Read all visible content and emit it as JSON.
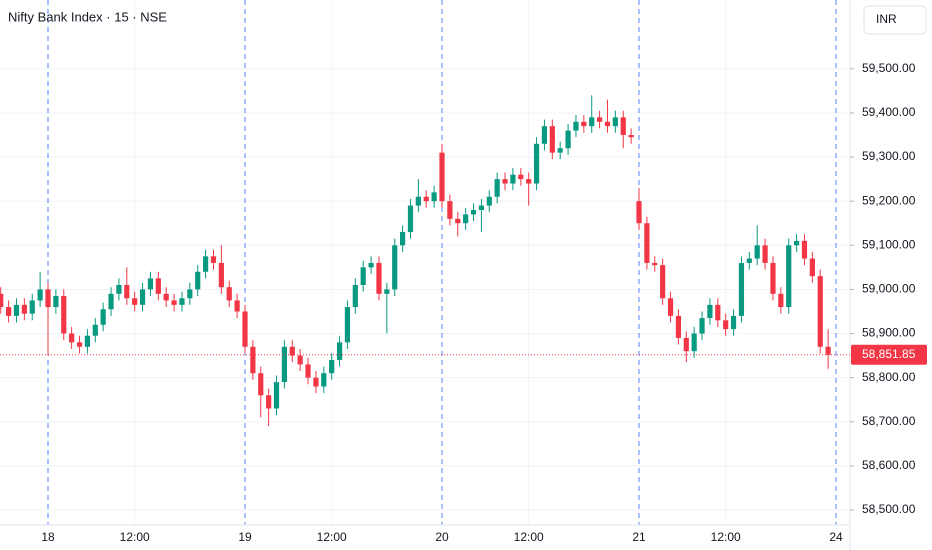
{
  "chart_data": {
    "type": "candlestick",
    "title": "Nifty Bank Index · 15 · NSE",
    "currency": "INR",
    "up_color": "#089981",
    "down_color": "#f23645",
    "categories": [
      null,
      null,
      null,
      null,
      null,
      null,
      "18",
      null,
      null,
      null,
      null,
      null,
      null,
      null,
      null,
      null,
      null,
      "12:00",
      null,
      null,
      null,
      null,
      null,
      null,
      null,
      null,
      null,
      null,
      null,
      null,
      null,
      "19",
      null,
      null,
      null,
      null,
      null,
      null,
      null,
      null,
      null,
      null,
      "12:00",
      null,
      null,
      null,
      null,
      null,
      null,
      null,
      null,
      null,
      null,
      null,
      null,
      null,
      "20",
      null,
      null,
      null,
      null,
      null,
      null,
      null,
      null,
      null,
      null,
      "12:00",
      null,
      null,
      null,
      null,
      null,
      null,
      null,
      null,
      null,
      null,
      null,
      null,
      null,
      "21",
      null,
      null,
      null,
      null,
      null,
      null,
      null,
      null,
      null,
      null,
      "12:00",
      null,
      null,
      null,
      null,
      null,
      null,
      null,
      null,
      null,
      null,
      null,
      null,
      null,
      "24"
    ],
    "open": [
      58990,
      58960,
      58940,
      58965,
      58945,
      58975,
      59000,
      58960,
      58985,
      58900,
      58880,
      58870,
      58895,
      58920,
      58955,
      58990,
      59010,
      58980,
      58965,
      59000,
      59025,
      58990,
      58975,
      58965,
      58980,
      59000,
      59040,
      59075,
      59060,
      59005,
      58975,
      58950,
      58870,
      58810,
      58760,
      58730,
      58790,
      58870,
      58850,
      58830,
      58800,
      58780,
      58810,
      58840,
      58880,
      58960,
      59010,
      59050,
      59060,
      58990,
      59000,
      59100,
      59130,
      59190,
      59210,
      59200,
      59310,
      59200,
      59160,
      59150,
      59170,
      59180,
      59190,
      59210,
      59250,
      59240,
      59260,
      59250,
      59240,
      59330,
      59370,
      59310,
      59320,
      59360,
      59380,
      59370,
      59390,
      59380,
      59370,
      59390,
      59350,
      59200,
      59150,
      59060,
      59055,
      58980,
      58940,
      58890,
      58860,
      58900,
      58935,
      58965,
      58930,
      58910,
      58940,
      59060,
      59070,
      59100,
      59060,
      58990,
      58960,
      59100,
      59110,
      59070,
      59030,
      58870,
      null
    ],
    "high": [
      59005,
      58975,
      58980,
      58980,
      58990,
      59040,
      59015,
      59000,
      59000,
      58915,
      58895,
      58910,
      58935,
      58970,
      59005,
      59025,
      59050,
      58995,
      59015,
      59040,
      59040,
      59005,
      58990,
      58995,
      59015,
      59055,
      59090,
      59090,
      59100,
      59020,
      58990,
      58965,
      58885,
      58825,
      58775,
      58805,
      58885,
      58885,
      58865,
      58845,
      58815,
      58825,
      58855,
      58895,
      58975,
      59025,
      59065,
      59075,
      59075,
      59015,
      59115,
      59145,
      59205,
      59250,
      59225,
      59235,
      59330,
      59215,
      59175,
      59185,
      59195,
      59205,
      59225,
      59265,
      59265,
      59275,
      59275,
      59265,
      59345,
      59385,
      59385,
      59335,
      59375,
      59395,
      59395,
      59440,
      59405,
      59430,
      59405,
      59405,
      59365,
      59230,
      59165,
      59075,
      59070,
      58995,
      58955,
      58905,
      58915,
      58950,
      58980,
      58980,
      58945,
      58955,
      59075,
      59085,
      59145,
      59115,
      59075,
      59005,
      59115,
      59125,
      59125,
      59085,
      59045,
      58910,
      null
    ],
    "low": [
      58945,
      58925,
      58925,
      58930,
      58930,
      58960,
      58850,
      58945,
      58885,
      58865,
      58855,
      58855,
      58880,
      58905,
      58940,
      58975,
      58965,
      58950,
      58950,
      58985,
      58975,
      58960,
      58950,
      58950,
      58965,
      58985,
      59025,
      59045,
      58990,
      58960,
      58935,
      58855,
      58795,
      58710,
      58690,
      58715,
      58775,
      58835,
      58815,
      58785,
      58765,
      58765,
      58795,
      58825,
      58865,
      58945,
      58995,
      59035,
      58975,
      58900,
      58985,
      59085,
      59115,
      59175,
      59185,
      59185,
      59185,
      59145,
      59120,
      59135,
      59155,
      59130,
      59175,
      59195,
      59225,
      59225,
      59235,
      59190,
      59225,
      59315,
      59295,
      59295,
      59305,
      59345,
      59355,
      59355,
      59365,
      59355,
      59355,
      59320,
      59330,
      59135,
      59045,
      59040,
      58965,
      58925,
      58875,
      58835,
      58845,
      58885,
      58920,
      58915,
      58895,
      58895,
      58925,
      59045,
      59055,
      59045,
      58975,
      58945,
      58945,
      59085,
      59055,
      59015,
      58855,
      58820,
      null
    ],
    "close": [
      58960,
      58940,
      58965,
      58945,
      58975,
      59000,
      58960,
      58985,
      58900,
      58880,
      58870,
      58895,
      58920,
      58955,
      58990,
      59010,
      58980,
      58965,
      59000,
      59025,
      58990,
      58975,
      58965,
      58980,
      59000,
      59040,
      59075,
      59060,
      59005,
      58975,
      58950,
      58870,
      58810,
      58760,
      58730,
      58790,
      58870,
      58850,
      58830,
      58800,
      58780,
      58810,
      58840,
      58880,
      58960,
      59010,
      59050,
      59060,
      58990,
      59000,
      59100,
      59130,
      59190,
      59210,
      59200,
      59220,
      59200,
      59160,
      59150,
      59170,
      59180,
      59190,
      59210,
      59250,
      59240,
      59260,
      59250,
      59240,
      59330,
      59370,
      59310,
      59320,
      59360,
      59380,
      59370,
      59390,
      59380,
      59370,
      59390,
      59350,
      59345,
      59150,
      59060,
      59055,
      58980,
      58940,
      58890,
      58860,
      58900,
      58935,
      58965,
      58930,
      58910,
      58940,
      59060,
      59070,
      59100,
      59060,
      58990,
      58960,
      59100,
      59110,
      59070,
      59030,
      58870,
      58851.85,
      null
    ],
    "last_price": {
      "value": 58851.85,
      "label": "58,851.85"
    },
    "ylim": [
      58466,
      59656
    ],
    "yticks": [
      {
        "value": 58500,
        "label": "58,500.00"
      },
      {
        "value": 58600,
        "label": "58,600.00"
      },
      {
        "value": 58700,
        "label": "58,700.00"
      },
      {
        "value": 58800,
        "label": "58,800.00"
      },
      {
        "value": 58900,
        "label": "58,900.00"
      },
      {
        "value": 59000,
        "label": "59,000.00"
      },
      {
        "value": 59100,
        "label": "59,100.00"
      },
      {
        "value": 59200,
        "label": "59,200.00"
      },
      {
        "value": 59300,
        "label": "59,300.00"
      },
      {
        "value": 59400,
        "label": "59,400.00"
      },
      {
        "value": 59500,
        "label": "59,500.00"
      }
    ],
    "grid": true
  }
}
